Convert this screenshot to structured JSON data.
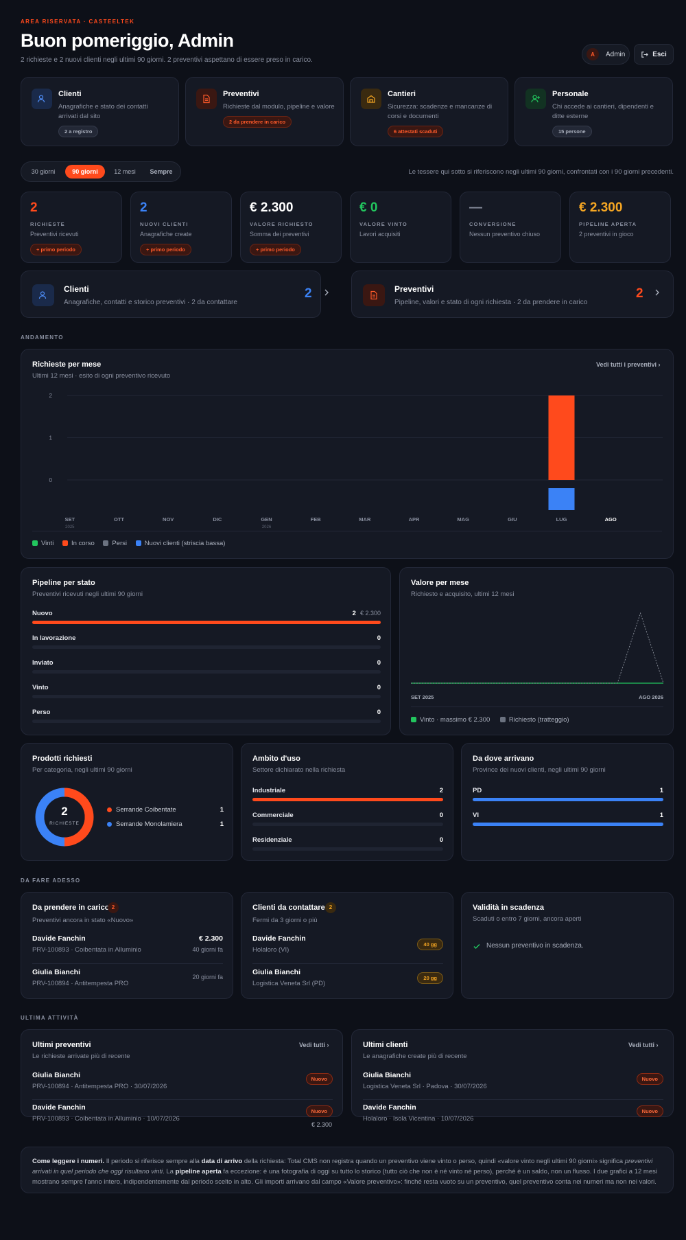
{
  "header": {
    "kicker": "AREA RISERVATA · CASTEELTEK",
    "greeting": "Buon pomeriggio, Admin",
    "subtitle": "2 richieste e 2 nuovi clienti negli ultimi 90 giorni. 2 preventivi aspettano di essere preso in carico.",
    "user_initial": "A",
    "user_name": "Admin",
    "logout_label": "Esci"
  },
  "modules": [
    {
      "title": "Clienti",
      "desc": "Anagrafiche e stato dei contatti arrivati dal sito",
      "badge": "2 a registro"
    },
    {
      "title": "Preventivi",
      "desc": "Richieste dal modulo, pipeline e valore",
      "badge": "2 da prendere in carico"
    },
    {
      "title": "Cantieri",
      "desc": "Sicurezza: scadenze e mancanze di corsi e documenti",
      "badge": "6 attestati scaduti"
    },
    {
      "title": "Personale",
      "desc": "Chi accede ai cantieri, dipendenti e ditte esterne",
      "badge": "15 persone"
    }
  ],
  "period": {
    "options": [
      "30 giorni",
      "90 giorni",
      "12 mesi",
      "Sempre"
    ],
    "selected": "90 giorni",
    "note": "Le tessere qui sotto si riferiscono negli ultimi 90 giorni, confrontati con i 90 giorni precedenti."
  },
  "kpis": [
    {
      "value": "2",
      "label": "RICHIESTE",
      "desc": "Preventivi ricevuti",
      "badge": "+ primo periodo",
      "color": "#ff4a1c"
    },
    {
      "value": "2",
      "label": "NUOVI CLIENTI",
      "desc": "Anagrafiche create",
      "badge": "+ primo periodo",
      "color": "#3b82f6"
    },
    {
      "value": "€ 2.300",
      "label": "VALORE RICHIESTO",
      "desc": "Somma dei preventivi",
      "badge": "+ primo periodo",
      "color": "#ffffff"
    },
    {
      "value": "€ 0",
      "label": "VALORE VINTO",
      "desc": "Lavori acquisiti",
      "badge": "",
      "color": "#22c55e"
    },
    {
      "value": "—",
      "label": "CONVERSIONE",
      "desc": "Nessun preventivo chiuso",
      "badge": "",
      "color": "#8a90a0"
    },
    {
      "value": "€ 2.300",
      "label": "PIPELINE APERTA",
      "desc": "2 preventivi in gioco",
      "badge": "",
      "color": "#f5a623"
    }
  ],
  "shortcuts": [
    {
      "title": "Clienti",
      "desc": "Anagrafiche, contatti e storico preventivi · 2 da contattare",
      "count": "2",
      "color": "#3b82f6"
    },
    {
      "title": "Preventivi",
      "desc": "Pipeline, valori e stato di ogni richiesta · 2 da prendere in carico",
      "count": "2",
      "color": "#ff4a1c"
    }
  ],
  "sections": {
    "andamento": "ANDAMENTO",
    "da_fare": "DA FARE ADESSO",
    "attivita": "ULTIMA ATTIVITÀ"
  },
  "monthly_chart": {
    "title": "Richieste per mese",
    "subtitle": "Ultimi 12 mesi · esito di ogni preventivo ricevuto",
    "link": "Vedi tutti i preventivi",
    "legend": [
      "Vinti",
      "In corso",
      "Persi",
      "Nuovi clienti (striscia bassa)"
    ],
    "years": [
      "2025",
      "2026"
    ]
  },
  "chart_data": [
    {
      "type": "bar",
      "categories": [
        "SET",
        "OTT",
        "NOV",
        "DIC",
        "GEN",
        "FEB",
        "MAR",
        "APR",
        "MAG",
        "GIU",
        "LUG",
        "AGO"
      ],
      "series": [
        {
          "name": "Vinti",
          "values": [
            0,
            0,
            0,
            0,
            0,
            0,
            0,
            0,
            0,
            0,
            0,
            0
          ],
          "color": "#22c55e"
        },
        {
          "name": "In corso",
          "values": [
            0,
            0,
            0,
            0,
            0,
            0,
            0,
            0,
            0,
            0,
            2,
            0
          ],
          "color": "#ff4a1c"
        },
        {
          "name": "Persi",
          "values": [
            0,
            0,
            0,
            0,
            0,
            0,
            0,
            0,
            0,
            0,
            0,
            0
          ],
          "color": "#6b7280"
        },
        {
          "name": "Nuovi clienti (striscia bassa)",
          "values": [
            0,
            0,
            0,
            0,
            0,
            0,
            0,
            0,
            0,
            0,
            2,
            0
          ],
          "color": "#3b82f6"
        }
      ],
      "yticks": [
        "2",
        "1",
        "0"
      ],
      "ylim": [
        0,
        2
      ],
      "highlight": "AGO"
    },
    {
      "type": "line",
      "x": [
        "SET 2025",
        "OTT",
        "NOV",
        "DIC",
        "GEN",
        "FEB",
        "MAR",
        "APR",
        "MAG",
        "GIU",
        "LUG",
        "AGO 2026"
      ],
      "series": [
        {
          "name": "Vinto",
          "values": [
            0,
            0,
            0,
            0,
            0,
            0,
            0,
            0,
            0,
            0,
            0,
            0
          ],
          "color": "#22c55e"
        },
        {
          "name": "Richiesto",
          "values": [
            0,
            0,
            0,
            0,
            0,
            0,
            0,
            0,
            0,
            0,
            2300,
            0
          ],
          "color": "#9aa0ab"
        }
      ],
      "xlabels": [
        "SET 2025",
        "AGO 2026"
      ],
      "legend": [
        "Vinto · massimo € 2.300",
        "Richiesto (tratteggio)"
      ]
    },
    {
      "type": "pie",
      "categories": [
        "Serrande Coibentate",
        "Serrande Monolamiera"
      ],
      "values": [
        1,
        1
      ],
      "colors": [
        "#ff4a1c",
        "#3b82f6"
      ],
      "center_value": "2",
      "center_label": "RICHIESTE"
    }
  ],
  "pipeline": {
    "title": "Pipeline per stato",
    "subtitle": "Preventivi ricevuti negli ultimi 90 giorni",
    "rows": [
      {
        "label": "Nuovo",
        "count": "2",
        "amount": "€ 2.300",
        "fraction": 1
      },
      {
        "label": "In lavorazione",
        "count": "0",
        "amount": "",
        "fraction": 0
      },
      {
        "label": "Inviato",
        "count": "0",
        "amount": "",
        "fraction": 0
      },
      {
        "label": "Vinto",
        "count": "0",
        "amount": "",
        "fraction": 0
      },
      {
        "label": "Perso",
        "count": "0",
        "amount": "",
        "fraction": 0
      }
    ]
  },
  "valore": {
    "title": "Valore per mese",
    "subtitle": "Richiesto e acquisito, ultimi 12 mesi"
  },
  "prodotti": {
    "title": "Prodotti richiesti",
    "subtitle": "Per categoria, negli ultimi 90 giorni",
    "items": [
      {
        "label": "Serrande Coibentate",
        "value": "1"
      },
      {
        "label": "Serrande Monolamiera",
        "value": "1"
      }
    ]
  },
  "ambito": {
    "title": "Ambito d'uso",
    "subtitle": "Settore dichiarato nella richiesta",
    "rows": [
      {
        "label": "Industriale",
        "value": "2",
        "fraction": 1
      },
      {
        "label": "Commerciale",
        "value": "0",
        "fraction": 0
      },
      {
        "label": "Residenziale",
        "value": "0",
        "fraction": 0
      }
    ]
  },
  "provenienza": {
    "title": "Da dove arrivano",
    "subtitle": "Province dei nuovi clienti, negli ultimi 90 giorni",
    "rows": [
      {
        "label": "PD",
        "value": "1",
        "fraction": 1
      },
      {
        "label": "VI",
        "value": "1",
        "fraction": 1
      }
    ]
  },
  "todo": {
    "prendere": {
      "title": "Da prendere in carico",
      "count": "2",
      "subtitle": "Preventivi ancora in stato «Nuovo»",
      "items": [
        {
          "name": "Davide Fanchin",
          "detail": "PRV-100893 · Coibentata in Alluminio",
          "amount": "€ 2.300",
          "age": "40 giorni fa"
        },
        {
          "name": "Giulia Bianchi",
          "detail": "PRV-100894 · Antitempesta PRO",
          "amount": "",
          "age": "20 giorni fa"
        }
      ]
    },
    "contattare": {
      "title": "Clienti da contattare",
      "count": "2",
      "subtitle": "Fermi da 3 giorni o più",
      "items": [
        {
          "name": "Davide Fanchin",
          "detail": "Holaloro (VI)",
          "badge": "40 gg"
        },
        {
          "name": "Giulia Bianchi",
          "detail": "Logistica Veneta Srl (PD)",
          "badge": "20 gg"
        }
      ]
    },
    "validita": {
      "title": "Validità in scadenza",
      "subtitle": "Scaduti o entro 7 giorni, ancora aperti",
      "empty": "Nessun preventivo in scadenza."
    }
  },
  "recent": {
    "preventivi": {
      "title": "Ultimi preventivi",
      "subtitle": "Le richieste arrivate più di recente",
      "link": "Vedi tutti",
      "items": [
        {
          "name": "Giulia Bianchi",
          "detail": "PRV-100894 · Antitempesta PRO · 30/07/2026",
          "status": "Nuovo",
          "amount": ""
        },
        {
          "name": "Davide Fanchin",
          "detail": "PRV-100893 · Coibentata in Alluminio · 10/07/2026",
          "status": "Nuovo",
          "amount": "€ 2.300"
        }
      ]
    },
    "clienti": {
      "title": "Ultimi clienti",
      "subtitle": "Le anagrafiche create più di recente",
      "link": "Vedi tutti",
      "items": [
        {
          "name": "Giulia Bianchi",
          "detail": "Logistica Veneta Srl · Padova · 30/07/2026",
          "status": "Nuovo"
        },
        {
          "name": "Davide Fanchin",
          "detail": "Holaloro · Isola Vicentina · 10/07/2026",
          "status": "Nuovo"
        }
      ]
    }
  },
  "footnote": {
    "lead": "Come leggere i numeri.",
    "p1": " Il periodo si riferisce sempre alla ",
    "b1": "data di arrivo",
    "p2": " della richiesta: Total CMS non registra quando un preventivo viene vinto o perso, quindi «valore vinto negli ultimi 90 giorni» significa ",
    "i1": "preventivi arrivati in quel periodo che oggi risultano vinti",
    "p3": ". La ",
    "b2": "pipeline aperta",
    "p4": " fa eccezione: è una fotografia di oggi su tutto lo storico (tutto ciò che non è né vinto né perso), perché è un saldo, non un flusso. I due grafici a 12 mesi mostrano sempre l'anno intero, indipendentemente dal periodo scelto in alto. Gli importi arrivano dal campo «Valore preventivo»: finché resta vuoto su un preventivo, quel preventivo conta nei numeri ma non nei valori."
  }
}
